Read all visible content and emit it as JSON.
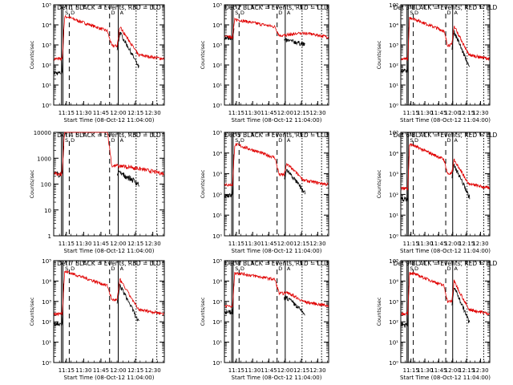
{
  "chart_data": [
    {
      "type": "line",
      "det_label": "Det 1",
      "legend": "BLACK = Events, RED = LLD",
      "ylabel": "Counts/sec",
      "xlabel": "Start Time (08-Oct-12 11:04:00)",
      "y_scale": "log",
      "ylim": [
        1,
        100000
      ],
      "y_ticks": [
        "10⁰",
        "10¹",
        "10²",
        "10³",
        "10⁴",
        "10⁵"
      ],
      "x_ticks": [
        "11:15",
        "11:30",
        "11:45",
        "12:00",
        "12:15",
        "12:30"
      ],
      "flags": [
        "S",
        "D",
        "D",
        "A",
        "S",
        "A"
      ],
      "baseline_red": 200,
      "baseline_black": 40,
      "peak": 25000,
      "mid": 5000,
      "plateau": 900,
      "spike": 8000
    },
    {
      "type": "line",
      "det_label": "Det 2",
      "legend": "BLACK = Events, RED = LLD",
      "ylabel": "Counts/sec",
      "xlabel": "Start Time (08-Oct-12 11:04:00)",
      "y_scale": "log",
      "ylim": [
        1,
        100000
      ],
      "y_ticks": [
        "10⁰",
        "10¹",
        "10²",
        "10³",
        "10⁴",
        "10⁵"
      ],
      "x_ticks": [
        "11:15",
        "11:30",
        "11:45",
        "12:00",
        "12:15",
        "12:30"
      ],
      "flags": [
        "S",
        "D",
        "D",
        "A",
        "S",
        "A"
      ],
      "baseline_red": 2500,
      "baseline_black": 2300,
      "peak": 18000,
      "mid": 8000,
      "plateau": 3000,
      "spike": 3200
    },
    {
      "type": "line",
      "det_label": "Det 3",
      "legend": "BLACK = Events, RED = LLD",
      "ylabel": "Counts/sec",
      "xlabel": "Start Time (08-Oct-12 11:04:00)",
      "y_scale": "log",
      "ylim": [
        1,
        100000
      ],
      "y_ticks": [
        "10⁰",
        "10¹",
        "10²",
        "10³",
        "10⁴",
        "10⁵"
      ],
      "x_ticks": [
        "11:15",
        "11:30",
        "11:45",
        "12:00",
        "12:15",
        "12:30"
      ],
      "flags": [
        "S",
        "D",
        "D",
        "A",
        "S",
        "A"
      ],
      "baseline_red": 200,
      "baseline_black": 50,
      "peak": 22000,
      "mid": 5000,
      "plateau": 1000,
      "spike": 9000
    },
    {
      "type": "line",
      "det_label": "Det 4",
      "legend": "BLACK = Events, RED = LLD",
      "ylabel": "Counts/sec",
      "xlabel": "Start Time (08-Oct-12 11:04:00)",
      "y_scale": "log",
      "ylim": [
        1,
        10000
      ],
      "y_ticks": [
        "1",
        "10",
        "100",
        "1000",
        "10000"
      ],
      "x_ticks": [
        "11:15",
        "11:30",
        "11:45",
        "12:00",
        "12:15",
        "12:30"
      ],
      "flags": [
        "S",
        "D",
        "D",
        "A",
        "S",
        "A"
      ],
      "baseline_red": 250,
      "baseline_black": 240,
      "peak": 12000,
      "mid": 12000,
      "plateau": 500,
      "spike": 500
    },
    {
      "type": "line",
      "det_label": "Det 5",
      "legend": "BLACK = Events, RED = LLD",
      "ylabel": "Counts/sec",
      "xlabel": "Start Time (08-Oct-12 11:04:00)",
      "y_scale": "log",
      "ylim": [
        1,
        100000
      ],
      "y_ticks": [
        "10⁰",
        "10¹",
        "10²",
        "10³",
        "10⁴",
        "10⁵"
      ],
      "x_ticks": [
        "11:15",
        "11:30",
        "11:45",
        "12:00",
        "12:15",
        "12:30"
      ],
      "flags": [
        "S",
        "D",
        "D",
        "A",
        "S",
        "A"
      ],
      "baseline_red": 300,
      "baseline_black": 90,
      "peak": 25000,
      "mid": 6000,
      "plateau": 900,
      "spike": 3000
    },
    {
      "type": "line",
      "det_label": "Det 6",
      "legend": "BLACK = Events, RED = LLD",
      "ylabel": "Counts/sec",
      "xlabel": "Start Time (08-Oct-12 11:04:00)",
      "y_scale": "log",
      "ylim": [
        1,
        100000
      ],
      "y_ticks": [
        "10⁰",
        "10¹",
        "10²",
        "10³",
        "10⁴",
        "10⁵"
      ],
      "x_ticks": [
        "11:15",
        "11:30",
        "11:45",
        "12:00",
        "12:15",
        "12:30"
      ],
      "flags": [
        "S",
        "D",
        "D",
        "A",
        "S",
        "A"
      ],
      "baseline_red": 200,
      "baseline_black": 60,
      "peak": 25000,
      "mid": 5000,
      "plateau": 1000,
      "spike": 5000
    },
    {
      "type": "line",
      "det_label": "Det 7",
      "legend": "BLACK = Events, RED = LLD",
      "ylabel": "Counts/sec",
      "xlabel": "Start Time (08-Oct-12 11:04:00)",
      "y_scale": "log",
      "ylim": [
        1,
        100000
      ],
      "y_ticks": [
        "10⁰",
        "10¹",
        "10²",
        "10³",
        "10⁴",
        "10⁵"
      ],
      "x_ticks": [
        "11:15",
        "11:30",
        "11:45",
        "12:00",
        "12:15",
        "12:30"
      ],
      "flags": [
        "S",
        "D",
        "D",
        "A",
        "S",
        "A"
      ],
      "baseline_red": 250,
      "baseline_black": 80,
      "peak": 28000,
      "mid": 6000,
      "plateau": 1200,
      "spike": 12000
    },
    {
      "type": "line",
      "det_label": "Det 8",
      "legend": "BLACK = Events, RED = LLD",
      "ylabel": "Counts/sec",
      "xlabel": "Start Time (08-Oct-12 11:04:00)",
      "y_scale": "log",
      "ylim": [
        1,
        100000
      ],
      "y_ticks": [
        "10⁰",
        "10¹",
        "10²",
        "10³",
        "10⁴",
        "10⁵"
      ],
      "x_ticks": [
        "11:15",
        "11:30",
        "11:45",
        "12:00",
        "12:15",
        "12:30"
      ],
      "flags": [
        "S",
        "D",
        "D",
        "A",
        "S",
        "A"
      ],
      "baseline_red": 600,
      "baseline_black": 300,
      "peak": 25000,
      "mid": 12000,
      "plateau": 2500,
      "spike": 3000
    },
    {
      "type": "line",
      "det_label": "Det 9",
      "legend": "BLACK = Events, RED = LLD",
      "ylabel": "Counts/sec",
      "xlabel": "Start Time (08-Oct-12 11:04:00)",
      "y_scale": "log",
      "ylim": [
        1,
        100000
      ],
      "y_ticks": [
        "10⁰",
        "10¹",
        "10²",
        "10³",
        "10⁴",
        "10⁵"
      ],
      "x_ticks": [
        "11:15",
        "11:30",
        "11:45",
        "12:00",
        "12:15",
        "12:30"
      ],
      "flags": [
        "S",
        "D",
        "D",
        "A",
        "S",
        "A"
      ],
      "baseline_red": 250,
      "baseline_black": 70,
      "peak": 25000,
      "mid": 6000,
      "plateau": 1000,
      "spike": 10000
    }
  ]
}
